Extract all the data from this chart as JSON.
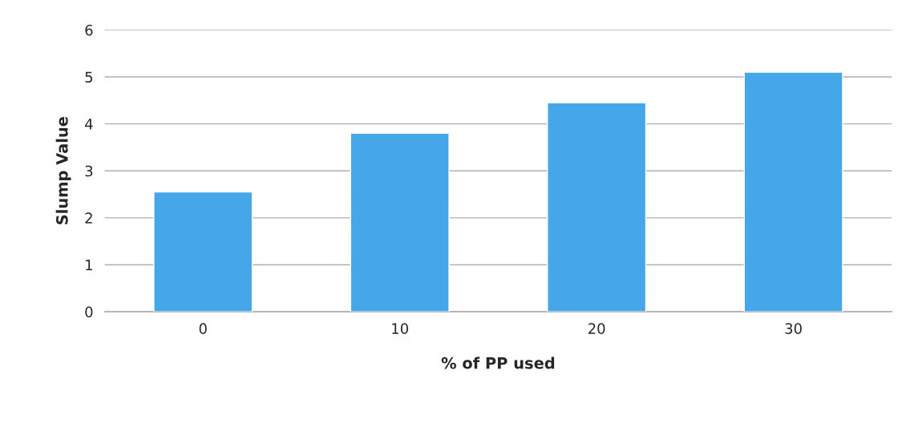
{
  "chart_data": {
    "type": "bar",
    "xlabel": "% of PP used",
    "ylabel": "Slump Value",
    "categories": [
      "0",
      "10",
      "20",
      "30"
    ],
    "values": [
      2.55,
      3.8,
      4.45,
      5.1
    ],
    "color": "#45a6e8",
    "ylim": [
      0,
      6
    ],
    "yticks": [
      0,
      1,
      2,
      3,
      4,
      5,
      6
    ],
    "grid": "y"
  }
}
